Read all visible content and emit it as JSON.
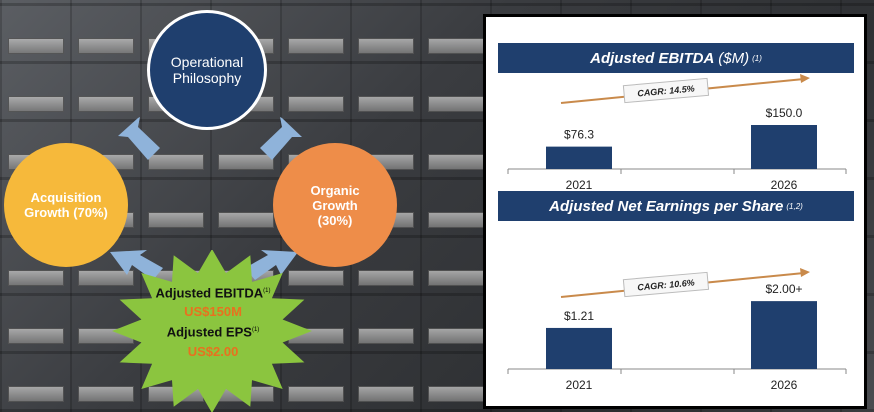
{
  "diagram": {
    "top_circle": "Operational Philosophy",
    "left_circle": "Acquisition Growth (70%)",
    "right_circle": "Organic Growth (30%)",
    "star": {
      "ebitda_label": "Adjusted EBITDA",
      "ebitda_note": "(1)",
      "ebitda_value": "US$150M",
      "eps_label": "Adjusted EPS",
      "eps_note": "(1)",
      "eps_value": "US$2.00"
    },
    "colors": {
      "blue": "#1f3f6e",
      "yellow": "#f6b93b",
      "orange": "#ee8d49",
      "green": "#8bc53f",
      "value_orange": "#e8711f"
    }
  },
  "panel": {
    "ebitda": {
      "title": "Adjusted EBITDA",
      "unit": "($M)",
      "note": "(1)",
      "cagr": "CAGR: 14.5%"
    },
    "eps": {
      "title": "Adjusted Net Earnings per Share",
      "note": "(1,2)",
      "cagr": "CAGR: 10.6%"
    }
  },
  "chart_data": [
    {
      "type": "bar",
      "title": "Adjusted EBITDA ($M)",
      "categories": [
        "2021",
        "2026"
      ],
      "values": [
        76.3,
        150.0
      ],
      "data_labels": [
        "$76.3",
        "$150.0"
      ],
      "annotation": "CAGR: 14.5%",
      "ylim": [
        0,
        225
      ]
    },
    {
      "type": "bar",
      "title": "Adjusted Net Earnings per Share",
      "categories": [
        "2021",
        "2026"
      ],
      "values": [
        1.21,
        2.0
      ],
      "data_labels": [
        "$1.21",
        "$2.00+"
      ],
      "annotation": "CAGR: 10.6%",
      "ylim": [
        0,
        3.3
      ]
    }
  ]
}
